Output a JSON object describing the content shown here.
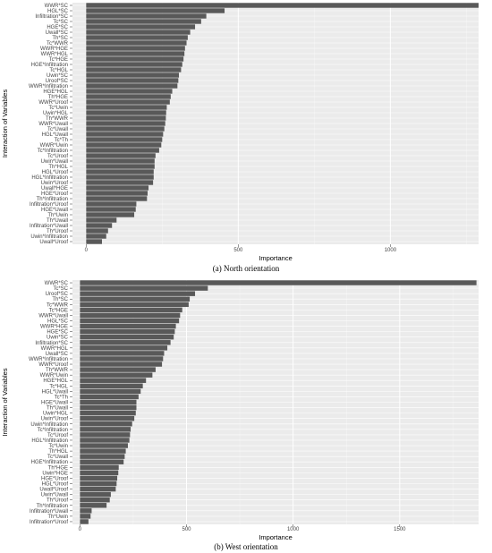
{
  "colors": {
    "panel_bg": "#ebebeb",
    "grid_major": "#ffffff",
    "grid_minor": "#f5f5f5",
    "bar": "#595959"
  },
  "chart_data": [
    {
      "type": "bar",
      "orientation": "horizontal",
      "caption": "(a) North orientation",
      "xlabel": "Importance",
      "ylabel": "Interaction of Variables",
      "xlim": [
        -45,
        1290
      ],
      "xticks": [
        0,
        500,
        1000
      ],
      "grid": true,
      "categories": [
        "WWR*SC",
        "HGL*SC",
        "Infiltration*SC",
        "Tc*SC",
        "HGE*SC",
        "Uwall*SC",
        "Th*SC",
        "Tc*WWR",
        "WWR*HGE",
        "WWR*HGL",
        "Tc*HGE",
        "HGE*Infiltration",
        "Tc*HGL",
        "Uwin*SC",
        "Uroof*SC",
        "WWR*Infiltration",
        "HGE*HGL",
        "Th*HGE",
        "WWR*Uroof",
        "Tc*Uwin",
        "Uwin*HGL",
        "Th*WWR",
        "WWR*Uwall",
        "Tc*Uwall",
        "HGL*Uwall",
        "Tc*Th",
        "WWR*Uwin",
        "Tc*Infiltration",
        "Tc*Uroof",
        "Uwin*Uwall",
        "Th*HGL",
        "HGL*Uroof",
        "HGL*Infiltration",
        "Uwin*Uroof",
        "Uwall*HGE",
        "HGE*Uroof",
        "Th*Infiltration",
        "Infiltration*Uroof",
        "HGE*Uwall",
        "Th*Uwin",
        "Th*Uwall",
        "Infiltration*Uwall",
        "Th*Uroof",
        "Uwin*Infiltration",
        "Uwall*Uroof"
      ],
      "values": [
        1290,
        455,
        395,
        378,
        358,
        342,
        334,
        330,
        325,
        323,
        320,
        316,
        312,
        305,
        303,
        300,
        283,
        278,
        275,
        265,
        263,
        262,
        260,
        257,
        253,
        250,
        247,
        240,
        228,
        225,
        225,
        222,
        222,
        220,
        205,
        202,
        200,
        165,
        163,
        158,
        100,
        85,
        72,
        66,
        52
      ]
    },
    {
      "type": "bar",
      "orientation": "horizontal",
      "caption": "(b) West orientation",
      "xlabel": "Importance",
      "ylabel": "Interaction of Variables",
      "xlim": [
        -35,
        1870
      ],
      "xticks": [
        0,
        500,
        1000,
        1500
      ],
      "grid": true,
      "categories": [
        "WWR*SC",
        "Tc*SC",
        "Uroof*SC",
        "Th*SC",
        "Tc*WWR",
        "Tc*HGE",
        "WWR*Uwall",
        "HGL*SC",
        "WWR*HGE",
        "HGE*SC",
        "Uwin*SC",
        "Infiltration*SC",
        "WWR*HGL",
        "Uwall*SC",
        "WWR*Infiltration",
        "WWR*Uroof",
        "Th*WWR",
        "WWR*Uwin",
        "HGE*HGL",
        "Tc*HGL",
        "HGL*Uwall",
        "Tc*Th",
        "HGE*Uwall",
        "Th*Uwall",
        "Uwin*HGL",
        "Uwin*Uroof",
        "Uwin*Infiltration",
        "Tc*Infiltration",
        "Tc*Uroof",
        "HGL*Infiltration",
        "Tc*Uwin",
        "Th*HGL",
        "Tc*Uwall",
        "HGE*Infiltration",
        "Th*HGE",
        "Uwin*HGE",
        "HGE*Uroof",
        "HGL*Uroof",
        "Uwall*Uroof",
        "Uwin*Uwall",
        "Th*Uroof",
        "Th*Infiltration",
        "Infiltration*Uwall",
        "Th*Uwin",
        "Infiltration*Uroof"
      ],
      "values": [
        1860,
        600,
        540,
        515,
        510,
        480,
        470,
        465,
        450,
        445,
        440,
        425,
        410,
        395,
        390,
        385,
        355,
        340,
        310,
        295,
        285,
        275,
        265,
        265,
        262,
        255,
        245,
        238,
        235,
        232,
        225,
        215,
        210,
        205,
        182,
        180,
        175,
        172,
        168,
        145,
        140,
        125,
        55,
        50,
        40
      ]
    }
  ]
}
